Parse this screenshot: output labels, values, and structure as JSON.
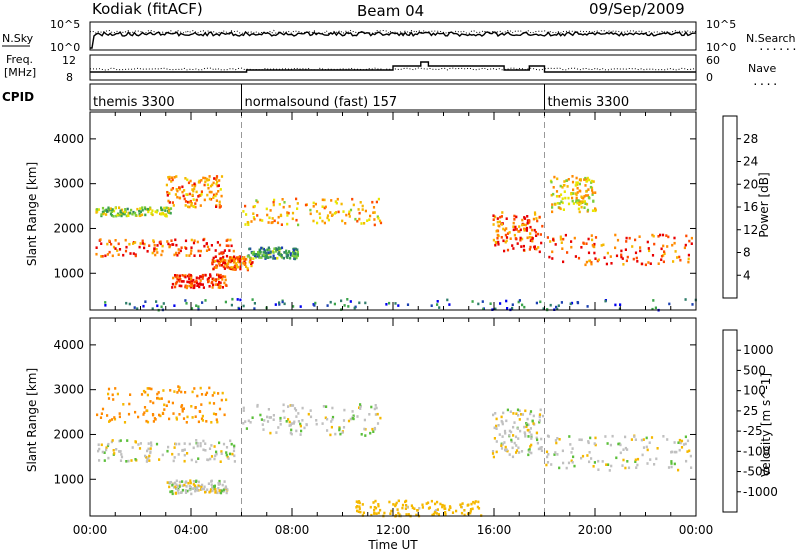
{
  "header": {
    "station": "Kodiak (fitACF)",
    "beam": "Beam 04",
    "date": "09/Sep/2009"
  },
  "noise_panel": {
    "left_label": "N.Sky",
    "left_top": "10^5",
    "left_bottom": "10^0",
    "right_top": "10^5",
    "right_bottom": "10^0",
    "right_label": "N.Search",
    "right_line": "........"
  },
  "freq_panel": {
    "left_label_1": "Freq.",
    "left_label_2": "[MHz]",
    "left_top": "12",
    "left_bottom": "8",
    "right_top": "60",
    "right_bottom": "0",
    "right_label": "Nave",
    "right_line": "...."
  },
  "cpid_panel": {
    "label": "CPID",
    "segments": [
      {
        "name": "themis 3300",
        "start": 0,
        "end": 6
      },
      {
        "name": "normalsound (fast) 157",
        "start": 6,
        "end": 18
      },
      {
        "name": "themis 3300",
        "start": 18,
        "end": 24
      }
    ]
  },
  "power_panel": {
    "ylabel": "Slant Range [km]",
    "yticks": [
      "1000",
      "2000",
      "3000",
      "4000"
    ],
    "colorbar_label": "Power [dB]",
    "colorbar_ticks": [
      "28",
      "24",
      "20",
      "16",
      "12",
      "8",
      "4"
    ],
    "colors": [
      "#0000ee",
      "#1a3fb0",
      "#2e7d6a",
      "#3aa34a",
      "#7ccd3a",
      "#e8e600",
      "#f5b800",
      "#ff8a00",
      "#ff4a00",
      "#e80000"
    ]
  },
  "velocity_panel": {
    "ylabel": "Slant Range [km]",
    "yticks": [
      "1000",
      "2000",
      "3000",
      "4000"
    ],
    "colorbar_label": "Velocity [m s^-1]",
    "colorbar_ticks": [
      "1000",
      "500",
      "100",
      "25",
      "-25",
      "-100",
      "-500",
      "-1000"
    ],
    "colors": [
      "#1a3fb0",
      "#2f6fd0",
      "#2e7d6a",
      "#5bbf3a",
      "#c0c0c0",
      "#c8c8c8",
      "#f5b800",
      "#ff8a00",
      "#ff4a00",
      "#e80000"
    ]
  },
  "x_axis": {
    "label": "Time UT",
    "ticks": [
      "00:00",
      "04:00",
      "08:00",
      "12:00",
      "16:00",
      "20:00",
      "00:00"
    ]
  },
  "chart_data": {
    "type": "heatmap",
    "title": "Kodiak (fitACF) Beam 04 09/Sep/2009",
    "xlabel": "Time UT",
    "ylabel": "Slant Range [km]",
    "xlim_hours": [
      0,
      24
    ],
    "ylim_km": [
      180,
      4600
    ],
    "power_bands_db": [
      {
        "t0": 0.2,
        "t1": 5.8,
        "r0": 1400,
        "r1": 1800,
        "v": 26
      },
      {
        "t0": 0.2,
        "t1": 3.2,
        "r0": 2300,
        "r1": 2500,
        "v": 14
      },
      {
        "t0": 3.0,
        "t1": 5.2,
        "r0": 2500,
        "r1": 3200,
        "v": 22
      },
      {
        "t0": 3.2,
        "t1": 5.4,
        "r0": 700,
        "r1": 1000,
        "v": 27
      },
      {
        "t0": 4.8,
        "t1": 6.4,
        "r0": 1100,
        "r1": 1400,
        "v": 24
      },
      {
        "t0": 6.0,
        "t1": 11.5,
        "r0": 2100,
        "r1": 2700,
        "v": 20
      },
      {
        "t0": 6.2,
        "t1": 8.2,
        "r0": 1350,
        "r1": 1600,
        "v": 10
      },
      {
        "t0": 15.9,
        "t1": 17.9,
        "r0": 1500,
        "r1": 2400,
        "v": 24
      },
      {
        "t0": 18.0,
        "t1": 23.8,
        "r0": 1200,
        "r1": 1900,
        "v": 25
      },
      {
        "t0": 18.2,
        "t1": 20.0,
        "r0": 2400,
        "r1": 3200,
        "v": 18
      },
      {
        "t0": 0.0,
        "t1": 24.0,
        "r0": 200,
        "r1": 450,
        "v": 6
      }
    ],
    "velocity_bands_ms": [
      {
        "t0": 0.2,
        "t1": 5.4,
        "r0": 2300,
        "r1": 3100,
        "v": -120
      },
      {
        "t0": 0.2,
        "t1": 5.8,
        "r0": 1400,
        "r1": 1900,
        "v": 0
      },
      {
        "t0": 6.0,
        "t1": 11.5,
        "r0": 2000,
        "r1": 2700,
        "v": 0
      },
      {
        "t0": 15.9,
        "t1": 17.9,
        "r0": 1500,
        "r1": 2600,
        "v": 0
      },
      {
        "t0": 18.0,
        "t1": 23.8,
        "r0": 1200,
        "r1": 2000,
        "v": 0
      },
      {
        "t0": 10.5,
        "t1": 15.5,
        "r0": 200,
        "r1": 550,
        "v": -60
      },
      {
        "t0": 3.0,
        "t1": 5.4,
        "r0": 700,
        "r1": 1000,
        "v": 0
      }
    ],
    "mode_changes_hours": [
      6,
      18
    ]
  }
}
